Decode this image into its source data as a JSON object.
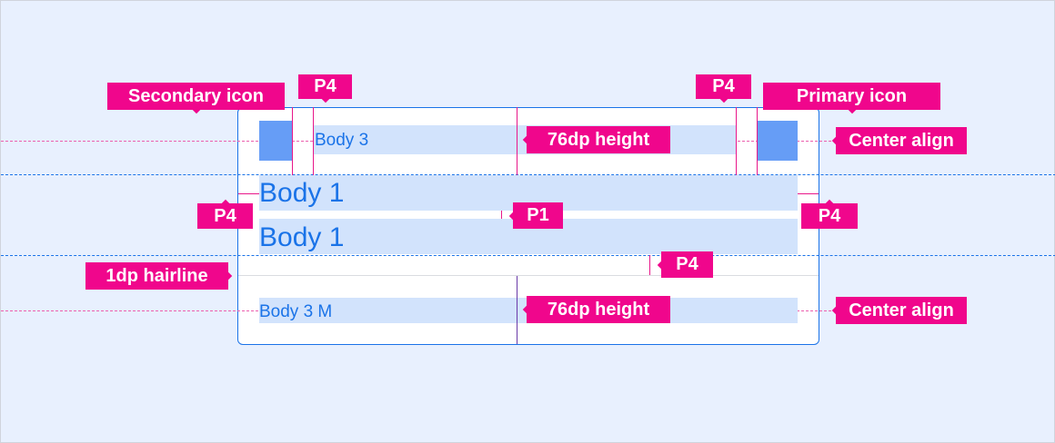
{
  "colors": {
    "accent": "#1a73e8",
    "annotation": "#f0068c",
    "icon_fill": "#669df6",
    "text_bar": "#d2e3fc",
    "background": "#e8f0fe"
  },
  "list": {
    "row1_text": "Body 3",
    "row2_line1": "Body 1",
    "row2_line2": "Body 1",
    "row3_text": "Body 3 M"
  },
  "annotations": {
    "secondary_icon": "Secondary icon",
    "primary_icon": "Primary icon",
    "p4_top_left": "P4",
    "p4_top_right": "P4",
    "p4_left": "P4",
    "p4_right": "P4",
    "p4_bottom": "P4",
    "p1": "P1",
    "height_top": "76dp height",
    "height_bottom": "76dp height",
    "center_top": "Center align",
    "center_bottom": "Center align",
    "hairline": "1dp hairline"
  }
}
